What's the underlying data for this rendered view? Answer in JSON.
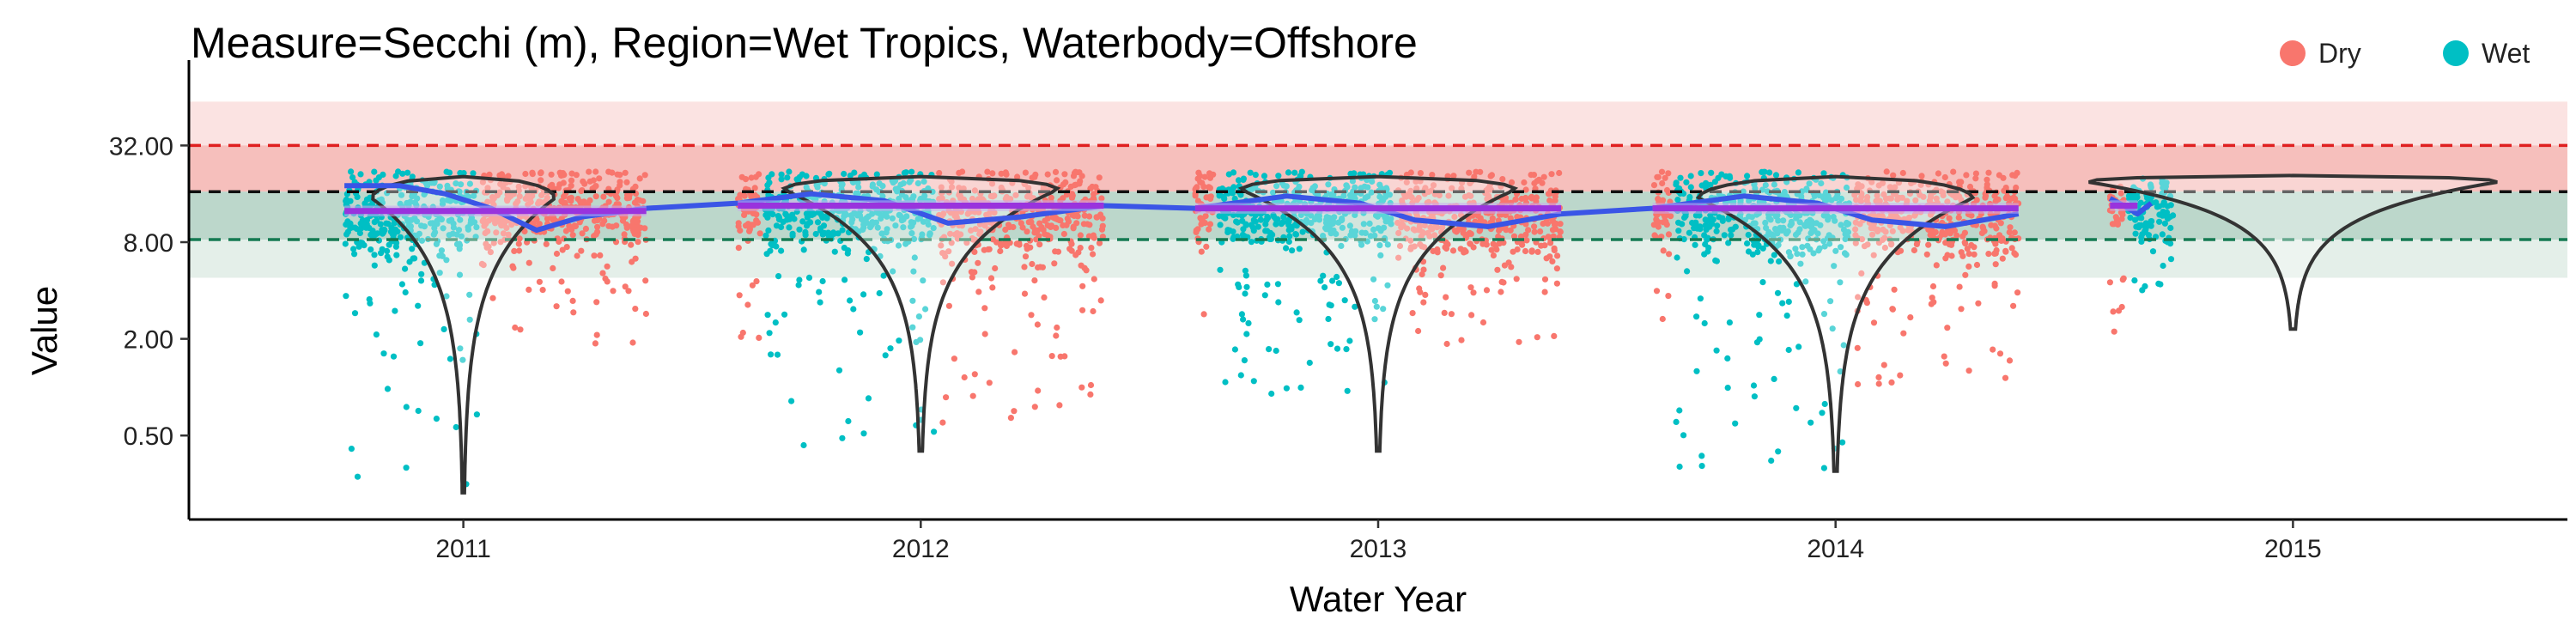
{
  "chart_data": {
    "type": "scatter",
    "title": "Measure=Secchi (m), Region=Wet Tropics, Waterbody=Offshore",
    "xlabel": "Water Year",
    "ylabel": "Value",
    "y_scale": "log2",
    "ylim": [
      0.15,
      80
    ],
    "yticks": [
      {
        "value": 0.5,
        "label": "0.50"
      },
      {
        "value": 2,
        "label": "2.00"
      },
      {
        "value": 8,
        "label": "8.00"
      },
      {
        "value": 32,
        "label": "32.00"
      }
    ],
    "categories": [
      "2011",
      "2012",
      "2013",
      "2014",
      "2015"
    ],
    "grid": false,
    "legend": {
      "placement": "top-right",
      "items": [
        {
          "label": "Dry",
          "color": "#F8766D"
        },
        {
          "label": "Wet",
          "color": "#00BFC4"
        }
      ]
    },
    "guideline_bands": [
      {
        "ymin": 16.5,
        "ymax": 60,
        "color": "#fbe3e2"
      },
      {
        "ymin": 16.5,
        "ymax": 32,
        "color": "#f6bfbc"
      },
      {
        "ymin": 4.8,
        "ymax": 16.5,
        "color": "#e4efe9"
      },
      {
        "ymin": 8.3,
        "ymax": 16.5,
        "color": "#bcd7cb"
      }
    ],
    "reference_lines": [
      {
        "value": 32,
        "color": "#e02020",
        "style": "dashed"
      },
      {
        "value": 16.5,
        "color": "#111111",
        "style": "dashed"
      },
      {
        "value": 8.3,
        "color": "#157a52",
        "style": "dashed"
      }
    ],
    "series": [
      {
        "name": "Dry",
        "color": "#F8766D",
        "years": [
          {
            "year": "2011",
            "x_start": 2011.04,
            "x_end": 2011.4,
            "median": 13,
            "q_low": 6.8,
            "q_high": 22,
            "min": 1.8
          },
          {
            "year": "2012",
            "x_start": 2011.6,
            "x_end": 2011.65,
            "median": 13,
            "q_low": 8,
            "q_high": 22,
            "min": 1.6
          },
          {
            "year": "2012",
            "x_start": 2012.04,
            "x_end": 2012.4,
            "median": 12,
            "q_low": 6.5,
            "q_high": 22,
            "min": 0.6
          },
          {
            "year": "2013",
            "x_start": 2012.6,
            "x_end": 2012.64,
            "median": 13,
            "q_low": 8,
            "q_high": 22,
            "min": 2.5
          },
          {
            "year": "2013",
            "x_start": 2013.04,
            "x_end": 2013.4,
            "median": 12,
            "q_low": 6.5,
            "q_high": 22,
            "min": 1.7
          },
          {
            "year": "2014",
            "x_start": 2013.6,
            "x_end": 2013.64,
            "median": 13,
            "q_low": 8,
            "q_high": 22,
            "min": 2.5
          },
          {
            "year": "2014",
            "x_start": 2014.04,
            "x_end": 2014.4,
            "median": 12,
            "q_low": 6.3,
            "q_high": 22,
            "min": 1.0
          },
          {
            "year": "2015",
            "x_start": 2014.6,
            "x_end": 2014.63,
            "median": 13,
            "q_low": 7,
            "q_high": 18,
            "min": 2.2
          }
        ]
      },
      {
        "name": "Wet",
        "color": "#00BFC4",
        "years": [
          {
            "year": "2011",
            "x_start": 2010.74,
            "x_end": 2011.03,
            "median": 12,
            "q_low": 5.5,
            "q_high": 22,
            "min": 0.22
          },
          {
            "year": "2012",
            "x_start": 2011.66,
            "x_end": 2012.03,
            "median": 13,
            "q_low": 5.5,
            "q_high": 22,
            "min": 0.4
          },
          {
            "year": "2013",
            "x_start": 2012.65,
            "x_end": 2013.03,
            "median": 13,
            "q_low": 5.5,
            "q_high": 22,
            "min": 0.8
          },
          {
            "year": "2014",
            "x_start": 2013.65,
            "x_end": 2014.03,
            "median": 12,
            "q_low": 5.2,
            "q_high": 22,
            "min": 0.3
          },
          {
            "year": "2015",
            "x_start": 2014.64,
            "x_end": 2014.74,
            "median": 13,
            "q_low": 8,
            "q_high": 20,
            "min": 4
          }
        ]
      }
    ],
    "trend_lines": [
      {
        "name": "smoother",
        "color": "#3a55e6",
        "points": [
          [
            2010.74,
            18
          ],
          [
            2010.86,
            18
          ],
          [
            2010.96,
            16
          ],
          [
            2011.06,
            13
          ],
          [
            2011.16,
            9.5
          ],
          [
            2011.26,
            11.5
          ],
          [
            2011.4,
            13
          ],
          [
            2011.6,
            14
          ],
          [
            2011.76,
            16
          ],
          [
            2011.92,
            14.5
          ],
          [
            2012.06,
            10.5
          ],
          [
            2012.22,
            11.5
          ],
          [
            2012.4,
            13.5
          ],
          [
            2012.6,
            13
          ],
          [
            2012.8,
            15.5
          ],
          [
            2012.96,
            14
          ],
          [
            2013.08,
            11
          ],
          [
            2013.24,
            10
          ],
          [
            2013.4,
            12
          ],
          [
            2013.6,
            13
          ],
          [
            2013.8,
            15.5
          ],
          [
            2013.96,
            14
          ],
          [
            2014.08,
            11
          ],
          [
            2014.24,
            10
          ],
          [
            2014.4,
            12
          ]
        ]
      },
      {
        "name": "smoother-2015",
        "color": "#3a55e6",
        "points": [
          [
            2014.6,
            15
          ],
          [
            2014.63,
            13.5
          ],
          [
            2014.66,
            12
          ],
          [
            2014.69,
            14
          ]
        ]
      }
    ],
    "annual_means": [
      {
        "year": "2011",
        "x_start": 2010.74,
        "x_end": 2011.4,
        "value": 12.5
      },
      {
        "year": "2012",
        "x_start": 2011.6,
        "x_end": 2012.4,
        "value": 13.5
      },
      {
        "year": "2013",
        "x_start": 2012.6,
        "x_end": 2013.4,
        "value": 13.0
      },
      {
        "year": "2014",
        "x_start": 2013.6,
        "x_end": 2014.4,
        "value": 13.0
      },
      {
        "year": "2015",
        "x_start": 2014.6,
        "x_end": 2014.66,
        "value": 13.5
      }
    ],
    "annual_mean_color": "#9933dd",
    "violins": [
      {
        "year": "2011",
        "y_min": 0.22,
        "y_max": 20.5,
        "peak": 15,
        "width": 0.2
      },
      {
        "year": "2012",
        "y_min": 0.4,
        "y_max": 20.5,
        "peak": 17,
        "width": 0.3
      },
      {
        "year": "2013",
        "y_min": 0.4,
        "y_max": 20.5,
        "peak": 17,
        "width": 0.3
      },
      {
        "year": "2014",
        "y_min": 0.3,
        "y_max": 20.5,
        "peak": 15,
        "width": 0.3
      },
      {
        "year": "2015",
        "y_min": 2.3,
        "y_max": 20.8,
        "peak": 19,
        "width": 0.45
      }
    ]
  }
}
